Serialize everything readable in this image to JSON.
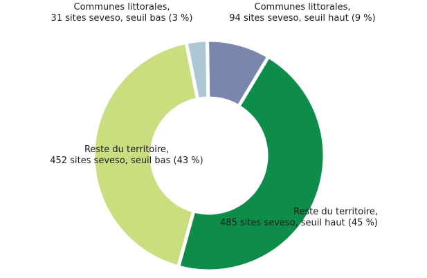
{
  "chart_data": {
    "type": "pie",
    "variant": "donut",
    "title": "",
    "series": [
      {
        "name": "Communes littorales, seuil haut",
        "value": 94,
        "percent": 9,
        "color": "#7b86ad",
        "label_line1": "Communes  littorales,",
        "label_line2": "94 sites seveso, seuil haut (9 %)"
      },
      {
        "name": "Reste du territoire, seuil haut",
        "value": 485,
        "percent": 45,
        "color": "#0d8c4a",
        "label_line1": "Reste du territoire,",
        "label_line2": "485 sites seveso, seuil haut (45 %)"
      },
      {
        "name": "Reste du territoire, seuil bas",
        "value": 452,
        "percent": 43,
        "color": "#c9de7f",
        "label_line1": "Reste du territoire,",
        "label_line2": "452 sites seveso, seuil bas (43 %)"
      },
      {
        "name": "Communes littorales, seuil bas",
        "value": 31,
        "percent": 3,
        "color": "#adc7d4",
        "label_line1": "Communes  littorales,",
        "label_line2": "31 sites seveso, seuil bas (3 %)"
      }
    ]
  }
}
